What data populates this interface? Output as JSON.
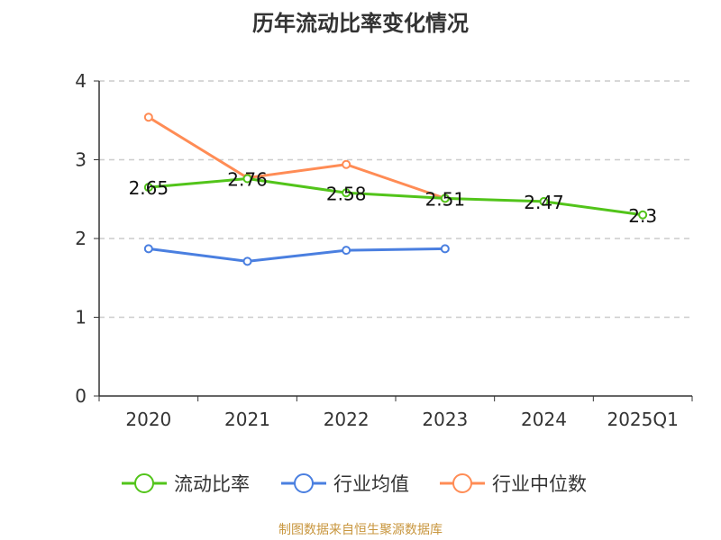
{
  "chart_data": {
    "type": "line",
    "title": "历年流动比率变化情况",
    "categories": [
      "2020",
      "2021",
      "2022",
      "2023",
      "2024",
      "2025Q1"
    ],
    "ylim": [
      0,
      4
    ],
    "yticks": [
      0,
      1,
      2,
      3,
      4
    ],
    "grid": true,
    "legend_position": "bottom",
    "series": [
      {
        "name": "流动比率",
        "color": "#52c41a",
        "values": [
          2.65,
          2.76,
          2.58,
          2.51,
          2.47,
          2.3
        ],
        "labels": [
          "2.65",
          "2.76",
          "2.58",
          "2.51",
          "2.47",
          "2.3"
        ]
      },
      {
        "name": "行业均值",
        "color": "#4a7fe0",
        "values": [
          1.87,
          1.71,
          1.85,
          1.87,
          null,
          null
        ]
      },
      {
        "name": "行业中位数",
        "color": "#ff8c55",
        "values": [
          3.54,
          2.77,
          2.94,
          2.51,
          null,
          null
        ]
      }
    ]
  },
  "source": "制图数据来自恒生聚源数据库"
}
